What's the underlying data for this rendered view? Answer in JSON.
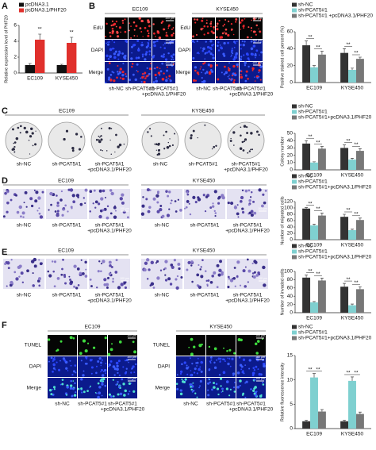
{
  "panel_letters": [
    "A",
    "B",
    "C",
    "D",
    "E",
    "F"
  ],
  "image_panels": {
    "B": {
      "groups": [
        "EC109",
        "KYSE450"
      ],
      "rows": [
        "EdU",
        "DAPI",
        "Merge"
      ],
      "conditions": [
        "sh-NC",
        "sh-PCAT5#1",
        [
          "sh-PCAT5#1",
          "+pcDNA3.1/PHF20"
        ]
      ],
      "scale": "100 μm"
    },
    "C": {
      "groups": [
        "EC109",
        "KYSE450"
      ],
      "conditions": [
        "sh-NC",
        "sh-PCAT5#1",
        [
          "sh-PCAT5#1",
          "+pcDNA3.1/PHF20"
        ]
      ]
    },
    "D": {
      "groups": [
        "EC109",
        "KYSE450"
      ],
      "conditions": [
        "sh-NC",
        "sh-PCAT5#1",
        [
          "sh-PCAT5#1",
          "+pcDNA3.1/PHF20"
        ]
      ],
      "scale": "100 μm"
    },
    "E": {
      "groups": [
        "EC109",
        "KYSE450"
      ],
      "conditions": [
        "sh-NC",
        "sh-PCAT5#1",
        [
          "sh-PCAT5#1",
          "+pcDNA3.1/PHF20"
        ]
      ],
      "scale": "100 μm"
    },
    "F": {
      "groups": [
        "EC109",
        "KYSE450"
      ],
      "rows": [
        "TUNEL",
        "DAPI",
        "Merge"
      ],
      "conditions": [
        "sh-NC",
        "sh-PCAT5#1",
        [
          "sh-PCAT5#1",
          "+pcDNA3.1/PHF20"
        ]
      ],
      "scale": "100 μm"
    }
  },
  "chart_data": [
    {
      "type": "bar",
      "y_label": "Relative expression level of PHF20",
      "categories": [
        "EC109",
        "KYSE450"
      ],
      "ylim": [
        0,
        6
      ],
      "yticks": [
        0,
        2,
        4,
        6
      ],
      "series": [
        {
          "name": "pcDNA3.1",
          "color": "#111111",
          "values": [
            1,
            1
          ],
          "errors": [
            0.2,
            0.1
          ]
        },
        {
          "name": "pcDNA3.1/PHF20",
          "color": "#e0302c",
          "values": [
            4.2,
            3.8
          ],
          "errors": [
            0.7,
            0.7
          ]
        }
      ],
      "annotations": [
        "**",
        "**"
      ]
    },
    {
      "type": "bar",
      "y_label": "Positive stained cell percent (%)",
      "categories": [
        "EC109",
        "KYSE450"
      ],
      "ylim": [
        0,
        60
      ],
      "yticks": [
        0,
        20,
        40,
        60
      ],
      "series": [
        {
          "name": "sh-NC",
          "color": "#333333",
          "values": [
            44,
            35
          ],
          "errors": [
            5,
            5
          ]
        },
        {
          "name": "sh-PCAT5#1",
          "color": "#7fd0d0",
          "values": [
            18,
            15
          ],
          "errors": [
            2,
            2
          ]
        },
        {
          "name": "sh-PCAT5#1 +pcDNA3.1/PHF20",
          "color": "#777777",
          "values": [
            33,
            28
          ],
          "errors": [
            4,
            2
          ]
        }
      ],
      "annotations": [
        "**",
        "**",
        "**",
        "**"
      ]
    },
    {
      "type": "bar",
      "y_label": "Colony number",
      "categories": [
        "EC109",
        "KYSE450"
      ],
      "ylim": [
        0,
        50
      ],
      "yticks": [
        0,
        10,
        20,
        30,
        40,
        50
      ],
      "series": [
        {
          "name": "sh-NC",
          "color": "#333333",
          "values": [
            36,
            30
          ],
          "errors": [
            4,
            4
          ]
        },
        {
          "name": "sh-PCAT5#1",
          "color": "#7fd0d0",
          "values": [
            10,
            14
          ],
          "errors": [
            1,
            2
          ]
        },
        {
          "name": "sh-PCAT5#1+pcDNA3.1/PHF20",
          "color": "#777777",
          "values": [
            29,
            26
          ],
          "errors": [
            3,
            3
          ]
        }
      ],
      "annotations": [
        "**",
        "**",
        "**",
        "**"
      ]
    },
    {
      "type": "bar",
      "y_label": "Number of migrated cells",
      "categories": [
        "EC109",
        "KYSE450"
      ],
      "ylim": [
        0,
        120
      ],
      "yticks": [
        0,
        20,
        40,
        60,
        80,
        100,
        120
      ],
      "series": [
        {
          "name": "sh-NC",
          "color": "#333333",
          "values": [
            98,
            72
          ],
          "errors": [
            3,
            8
          ]
        },
        {
          "name": "sh-PCAT5#1",
          "color": "#7fd0d0",
          "values": [
            45,
            30
          ],
          "errors": [
            4,
            3
          ]
        },
        {
          "name": "sh-PCAT5#1+pcDNA3.1/PHF20",
          "color": "#777777",
          "values": [
            76,
            62
          ],
          "errors": [
            8,
            6
          ]
        }
      ],
      "annotations": [
        "**",
        "**",
        "**",
        "**"
      ]
    },
    {
      "type": "bar",
      "y_label": "Number of invaded cells",
      "categories": [
        "EC109",
        "KYSE450"
      ],
      "ylim": [
        0,
        100
      ],
      "yticks": [
        0,
        20,
        40,
        60,
        80,
        100
      ],
      "series": [
        {
          "name": "sh-NC",
          "color": "#333333",
          "values": [
            85,
            63
          ],
          "errors": [
            6,
            8
          ]
        },
        {
          "name": "sh-PCAT5#1",
          "color": "#7fd0d0",
          "values": [
            25,
            18
          ],
          "errors": [
            2,
            3
          ]
        },
        {
          "name": "sh-PCAT5#1+pcDNA3.1/PHF20",
          "color": "#777777",
          "values": [
            78,
            57
          ],
          "errors": [
            6,
            6
          ]
        }
      ],
      "annotations": [
        "**",
        "**",
        "**",
        "**"
      ]
    },
    {
      "type": "bar",
      "y_label": "Relative fluorescence intensity",
      "categories": [
        "EC109",
        "KYSE450"
      ],
      "ylim": [
        0,
        15
      ],
      "yticks": [
        0,
        5,
        10,
        15
      ],
      "series": [
        {
          "name": "sh-NC",
          "color": "#333333",
          "values": [
            1.5,
            1.5
          ],
          "errors": [
            0.2,
            0.2
          ]
        },
        {
          "name": "sh-PCAT5#1",
          "color": "#7fd0d0",
          "values": [
            10.5,
            9.8
          ],
          "errors": [
            0.8,
            0.8
          ]
        },
        {
          "name": "sh-PCAT5#1+pcDNA3.1/PHF20",
          "color": "#777777",
          "values": [
            3.5,
            3.0
          ],
          "errors": [
            0.4,
            0.4
          ]
        }
      ],
      "annotations": [
        "**",
        "**",
        "**",
        "**"
      ]
    }
  ]
}
